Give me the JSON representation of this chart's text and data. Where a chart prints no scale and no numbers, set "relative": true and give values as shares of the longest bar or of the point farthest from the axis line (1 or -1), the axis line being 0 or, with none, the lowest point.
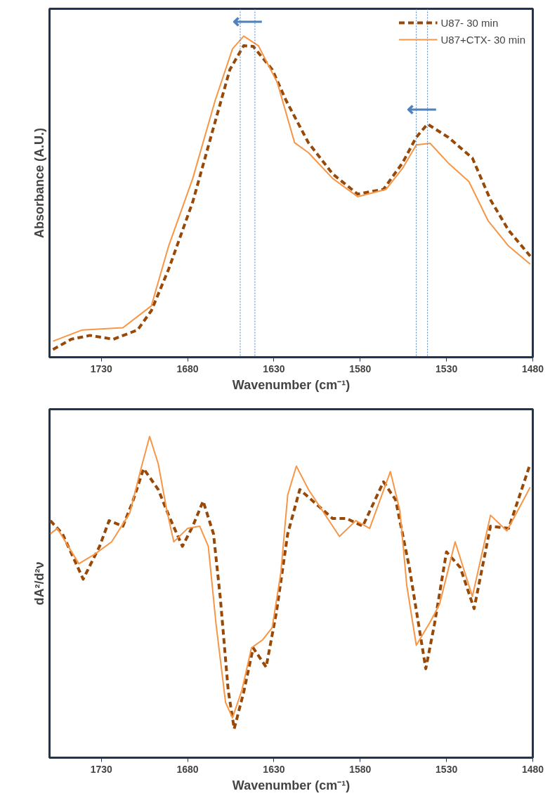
{
  "chart_data": [
    {
      "type": "line",
      "relative": true,
      "ylabel": "Absorbance (A.U.)",
      "xlabel": "Wavenumber (cm⁻¹)",
      "xlim": [
        1760,
        1480
      ],
      "xticks": [
        1730,
        1680,
        1630,
        1580,
        1530,
        1480
      ],
      "legend": "top right",
      "grid": false,
      "series": [
        {
          "name": "U87- 30 min",
          "color": "#984807",
          "line_style": "dashed",
          "x": [
            1758,
            1747.5,
            1736.5,
            1723,
            1709,
            1701,
            1691,
            1677,
            1664,
            1655.5,
            1647.5,
            1642,
            1631,
            1623,
            1610,
            1596,
            1581.5,
            1566.5,
            1555.5,
            1547.5,
            1541,
            1529,
            1515,
            1504.5,
            1494,
            1481.5
          ],
          "values": [
            0.024,
            0.056,
            0.068,
            0.056,
            0.085,
            0.145,
            0.274,
            0.484,
            0.734,
            0.896,
            0.97,
            0.968,
            0.896,
            0.8,
            0.668,
            0.571,
            0.508,
            0.523,
            0.605,
            0.685,
            0.726,
            0.685,
            0.62,
            0.49,
            0.395,
            0.315
          ]
        },
        {
          "name": "U87+CTX- 30 min",
          "color": "#f79646",
          "line_style": "solid",
          "x": [
            1758,
            1741,
            1717.5,
            1701,
            1691,
            1677,
            1664,
            1654,
            1647.5,
            1639,
            1628,
            1618,
            1610,
            1596,
            1581.5,
            1565,
            1555.5,
            1547.5,
            1539.5,
            1529,
            1517,
            1506,
            1494,
            1481.5
          ],
          "values": [
            0.05,
            0.085,
            0.092,
            0.16,
            0.346,
            0.557,
            0.8,
            0.96,
            1.0,
            0.97,
            0.855,
            0.668,
            0.637,
            0.557,
            0.5,
            0.523,
            0.588,
            0.661,
            0.666,
            0.605,
            0.547,
            0.426,
            0.346,
            0.29
          ]
        }
      ],
      "ref_lines": [
        {
          "axis": "x",
          "value": 1649.5,
          "color": "#4f81bd",
          "line_style": "dotted"
        },
        {
          "axis": "x",
          "value": 1641,
          "color": "#4f81bd",
          "line_style": "dotted"
        },
        {
          "axis": "x",
          "value": 1547.5,
          "color": "#4f81bd",
          "line_style": "dotted"
        },
        {
          "axis": "x",
          "value": 1541,
          "color": "#4f81bd",
          "line_style": "dotted"
        }
      ],
      "annotations": [
        "⟵",
        "⟵"
      ]
    },
    {
      "type": "line",
      "relative": true,
      "ylabel": "dA²/d²ν",
      "xlabel": "Wavenumber (cm⁻¹)",
      "xlim": [
        1760,
        1480
      ],
      "xticks": [
        1730,
        1680,
        1630,
        1580,
        1530,
        1480
      ],
      "grid": false,
      "series": [
        {
          "color": "#984807",
          "line_style": "dashed",
          "x": [
            1759.5,
            1752.5,
            1740.5,
            1731,
            1725.5,
            1717.5,
            1712,
            1705.5,
            1697,
            1691,
            1683,
            1677,
            1671,
            1665,
            1661,
            1656.5,
            1653,
            1647.5,
            1642,
            1634.5,
            1628.5,
            1622,
            1615,
            1596,
            1588,
            1578.5,
            1566.5,
            1559.5,
            1551.5,
            1542,
            1537,
            1530,
            1522,
            1514,
            1504.5,
            1494,
            1481.5
          ],
          "values": [
            0.738,
            0.697,
            0.556,
            0.658,
            0.738,
            0.721,
            0.794,
            0.9,
            0.835,
            0.755,
            0.658,
            0.721,
            0.799,
            0.697,
            0.495,
            0.211,
            0.09,
            0.204,
            0.342,
            0.282,
            0.454,
            0.697,
            0.835,
            0.745,
            0.745,
            0.721,
            0.859,
            0.803,
            0.592,
            0.277,
            0.415,
            0.641,
            0.592,
            0.464,
            0.721,
            0.714,
            0.915
          ]
        },
        {
          "color": "#f79646",
          "line_style": "solid",
          "x": [
            1759.5,
            1755.5,
            1743,
            1734,
            1724,
            1713.5,
            1707,
            1702,
            1697,
            1692,
            1688,
            1680,
            1673,
            1668,
            1663.5,
            1658,
            1654,
            1648.5,
            1643,
            1636.5,
            1631,
            1626,
            1622,
            1617,
            1610,
            1592,
            1582.5,
            1574.5,
            1562.5,
            1557,
            1553,
            1547.5,
            1539.5,
            1534,
            1525,
            1515,
            1504.5,
            1495,
            1481.5
          ],
          "values": [
            0.697,
            0.714,
            0.604,
            0.633,
            0.672,
            0.762,
            0.9,
            1.0,
            0.915,
            0.769,
            0.672,
            0.714,
            0.721,
            0.658,
            0.415,
            0.172,
            0.124,
            0.211,
            0.342,
            0.367,
            0.405,
            0.575,
            0.818,
            0.908,
            0.835,
            0.689,
            0.738,
            0.714,
            0.891,
            0.769,
            0.536,
            0.35,
            0.422,
            0.478,
            0.672,
            0.502,
            0.755,
            0.706,
            0.842
          ]
        }
      ]
    }
  ]
}
